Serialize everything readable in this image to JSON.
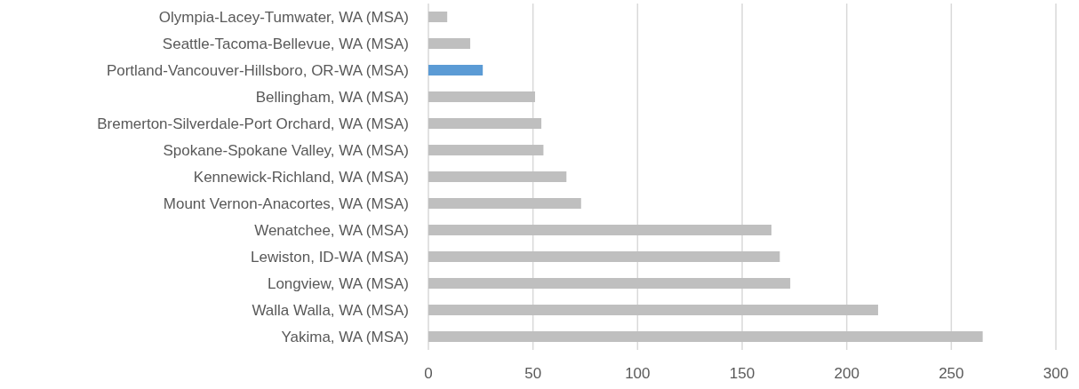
{
  "chart_data": {
    "type": "bar",
    "orientation": "horizontal",
    "categories": [
      "Olympia-Lacey-Tumwater, WA (MSA)",
      "Seattle-Tacoma-Bellevue, WA (MSA)",
      "Portland-Vancouver-Hillsboro, OR-WA (MSA)",
      "Bellingham, WA (MSA)",
      "Bremerton-Silverdale-Port Orchard, WA (MSA)",
      "Spokane-Spokane Valley, WA (MSA)",
      "Kennewick-Richland, WA (MSA)",
      "Mount Vernon-Anacortes, WA (MSA)",
      "Wenatchee, WA (MSA)",
      "Lewiston, ID-WA (MSA)",
      "Longview, WA (MSA)",
      "Walla Walla, WA (MSA)",
      "Yakima, WA (MSA)"
    ],
    "values": [
      9,
      20,
      26,
      51,
      54,
      55,
      66,
      73,
      164,
      168,
      173,
      215,
      265
    ],
    "colors": [
      "#bfbfbf",
      "#bfbfbf",
      "#5b9bd5",
      "#bfbfbf",
      "#bfbfbf",
      "#bfbfbf",
      "#bfbfbf",
      "#bfbfbf",
      "#bfbfbf",
      "#bfbfbf",
      "#bfbfbf",
      "#bfbfbf",
      "#bfbfbf"
    ],
    "xlim": [
      0,
      300
    ],
    "xticks": [
      0,
      50,
      100,
      150,
      200,
      250,
      300
    ],
    "grid": "x"
  }
}
